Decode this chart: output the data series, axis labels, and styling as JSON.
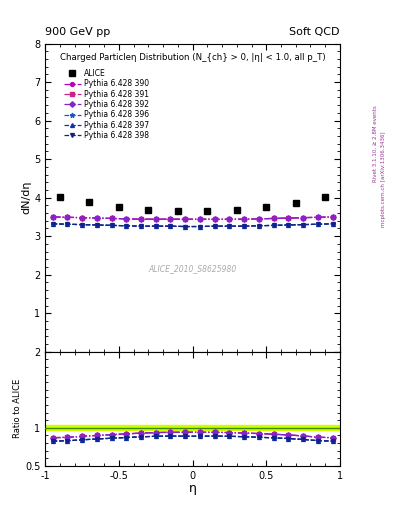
{
  "title_top_left": "900 GeV pp",
  "title_top_right": "Soft QCD",
  "plot_title": "Charged Particleη Distribution (N_{ch} > 0, |η| < 1.0, all p_T)",
  "ylabel_main": "dN/dη",
  "ylabel_ratio": "Ratio to ALICE",
  "xlabel": "η",
  "right_label_top": "Rivet 3.1.10, ≥ 2.8M events",
  "right_label_bot": "mcplots.cern.ch [arXiv:1306.3436]",
  "watermark": "ALICE_2010_S8625980",
  "eta_alice": [
    -0.9,
    -0.7,
    -0.5,
    -0.3,
    -0.1,
    0.1,
    0.3,
    0.5,
    0.7,
    0.9
  ],
  "alice_data": [
    4.02,
    3.88,
    3.77,
    3.67,
    3.65,
    3.65,
    3.67,
    3.75,
    3.85,
    4.02
  ],
  "eta_mc": [
    -0.95,
    -0.85,
    -0.75,
    -0.65,
    -0.55,
    -0.45,
    -0.35,
    -0.25,
    -0.15,
    -0.05,
    0.05,
    0.15,
    0.25,
    0.35,
    0.45,
    0.55,
    0.65,
    0.75,
    0.85,
    0.95
  ],
  "pythia390": [
    3.5,
    3.49,
    3.48,
    3.47,
    3.46,
    3.45,
    3.44,
    3.44,
    3.44,
    3.44,
    3.44,
    3.44,
    3.44,
    3.44,
    3.45,
    3.46,
    3.47,
    3.48,
    3.49,
    3.5
  ],
  "pythia391": [
    3.5,
    3.49,
    3.48,
    3.47,
    3.46,
    3.45,
    3.44,
    3.44,
    3.44,
    3.44,
    3.44,
    3.44,
    3.44,
    3.44,
    3.45,
    3.46,
    3.47,
    3.48,
    3.49,
    3.5
  ],
  "pythia392": [
    3.5,
    3.49,
    3.48,
    3.47,
    3.46,
    3.45,
    3.44,
    3.44,
    3.44,
    3.44,
    3.44,
    3.44,
    3.44,
    3.44,
    3.45,
    3.46,
    3.47,
    3.48,
    3.49,
    3.5
  ],
  "pythia396": [
    3.32,
    3.31,
    3.3,
    3.29,
    3.28,
    3.27,
    3.26,
    3.26,
    3.26,
    3.25,
    3.25,
    3.26,
    3.26,
    3.26,
    3.27,
    3.28,
    3.29,
    3.3,
    3.31,
    3.32
  ],
  "pythia397": [
    3.32,
    3.31,
    3.3,
    3.29,
    3.28,
    3.27,
    3.26,
    3.26,
    3.26,
    3.25,
    3.25,
    3.26,
    3.26,
    3.26,
    3.27,
    3.28,
    3.29,
    3.3,
    3.31,
    3.32
  ],
  "pythia398": [
    3.32,
    3.31,
    3.3,
    3.29,
    3.28,
    3.27,
    3.26,
    3.26,
    3.26,
    3.25,
    3.25,
    3.26,
    3.26,
    3.26,
    3.27,
    3.28,
    3.29,
    3.3,
    3.31,
    3.32
  ],
  "colors": {
    "pythia390": "#bb00bb",
    "pythia391": "#cc2288",
    "pythia392": "#8822cc",
    "pythia396": "#2255bb",
    "pythia397": "#1133aa",
    "pythia398": "#112288"
  },
  "markers": {
    "pythia390": "o",
    "pythia391": "s",
    "pythia392": "D",
    "pythia396": "*",
    "pythia397": "^",
    "pythia398": "v"
  },
  "linestyles": {
    "pythia390": "-.",
    "pythia391": "-.",
    "pythia392": "-.",
    "pythia396": "--",
    "pythia397": "--",
    "pythia398": "--"
  },
  "ylim_main": [
    0,
    8
  ],
  "ylim_ratio": [
    0.5,
    2.0
  ],
  "xlim": [
    -1.0,
    1.0
  ],
  "green_band_lo": 0.97,
  "green_band_hi": 1.04,
  "green_color": "#ccff00",
  "green_line_color": "#448800"
}
